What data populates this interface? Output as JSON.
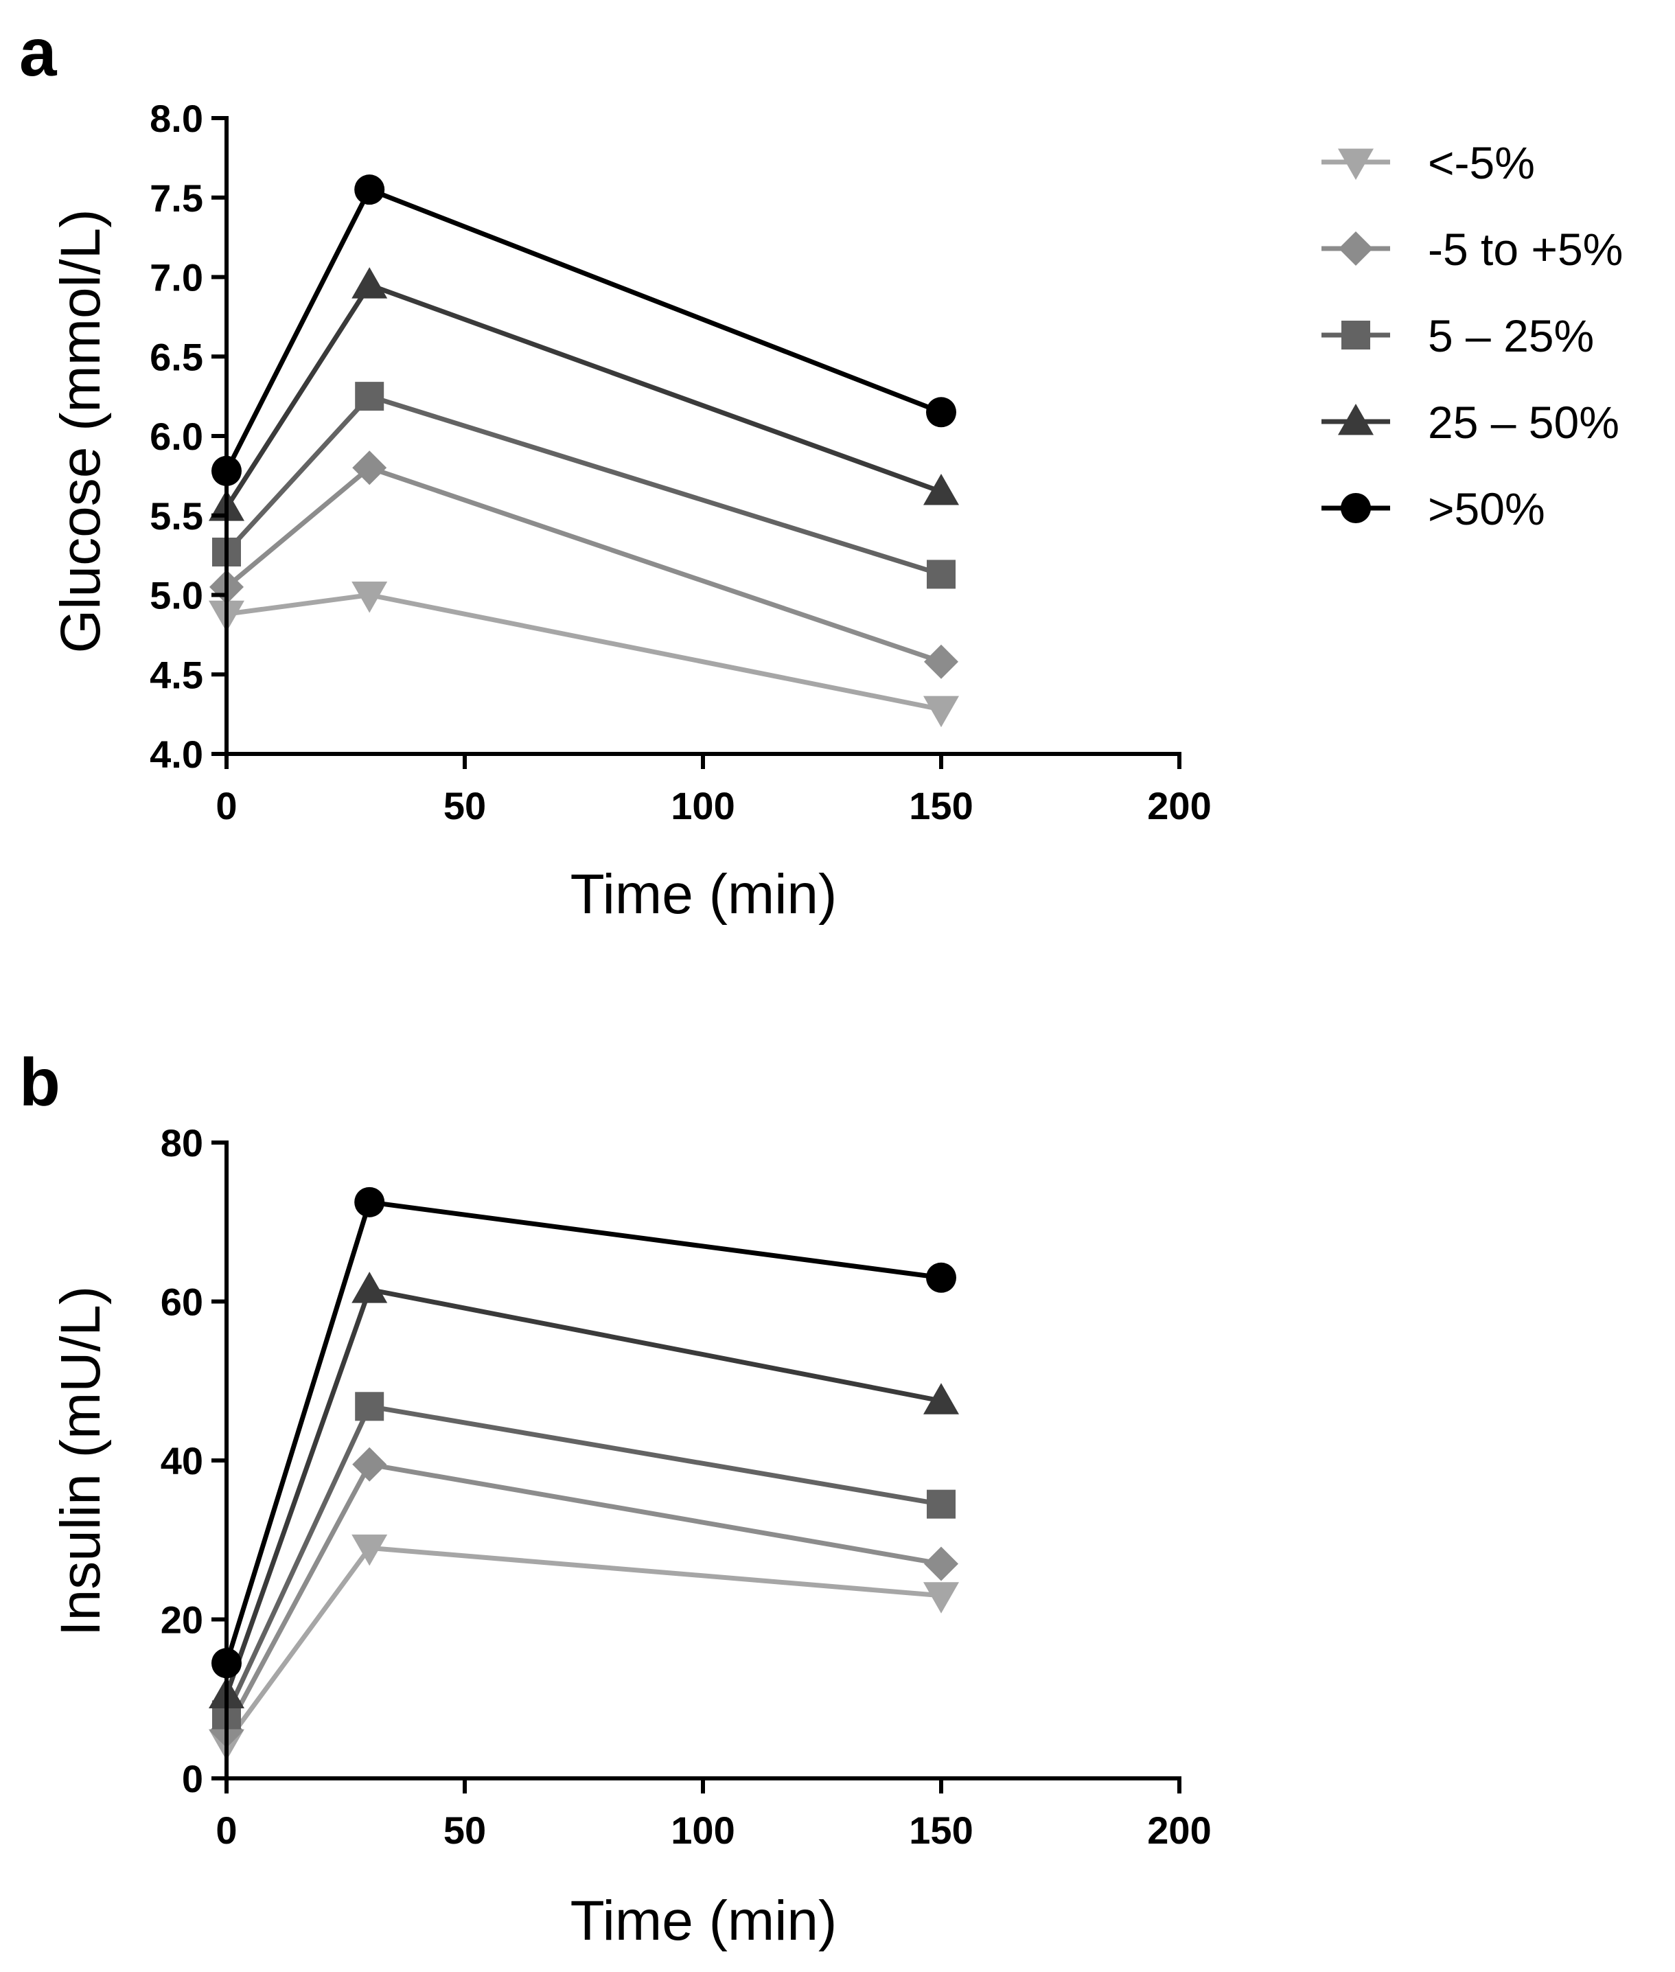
{
  "figure": {
    "panel_labels": [
      "a",
      "b"
    ]
  },
  "legend": {
    "entries": [
      {
        "name": "<-5%",
        "color": "#a6a6a6",
        "marker": "triangle-down"
      },
      {
        "name": "-5 to +5%",
        "color": "#8c8c8c",
        "marker": "diamond"
      },
      {
        "name": "5 – 25%",
        "color": "#636363",
        "marker": "square"
      },
      {
        "name": "25 – 50%",
        "color": "#3a3a3a",
        "marker": "triangle-up"
      },
      {
        "name": ">50%",
        "color": "#000000",
        "marker": "circle"
      }
    ]
  },
  "chart_data": [
    {
      "type": "line",
      "panel_label": "a",
      "xlabel": "Time (min)",
      "ylabel": "Glucose (mmol/L)",
      "xlim": [
        0,
        200
      ],
      "ylim": [
        4.0,
        8.0
      ],
      "xticks": [
        0,
        50,
        100,
        150,
        200
      ],
      "yticks": [
        4.0,
        4.5,
        5.0,
        5.5,
        6.0,
        6.5,
        7.0,
        7.5,
        8.0
      ],
      "ytick_decimals": 1,
      "grid": false,
      "legend_position": "right",
      "x": [
        0,
        30,
        150
      ],
      "series": [
        {
          "name": "<-5%",
          "values": [
            4.88,
            5.0,
            4.28
          ]
        },
        {
          "name": "-5 to +5%",
          "values": [
            5.05,
            5.8,
            4.58
          ]
        },
        {
          "name": "5 – 25%",
          "values": [
            5.27,
            6.25,
            5.13
          ]
        },
        {
          "name": "25 – 50%",
          "values": [
            5.55,
            6.95,
            5.65
          ]
        },
        {
          "name": ">50%",
          "values": [
            5.78,
            7.55,
            6.15
          ]
        }
      ]
    },
    {
      "type": "line",
      "panel_label": "b",
      "xlabel": "Time (min)",
      "ylabel": "Insulin (mU/L)",
      "xlim": [
        0,
        200
      ],
      "ylim": [
        0,
        80
      ],
      "xticks": [
        0,
        50,
        100,
        150,
        200
      ],
      "yticks": [
        0,
        20,
        40,
        60,
        80
      ],
      "ytick_decimals": 0,
      "grid": false,
      "x": [
        0,
        30,
        150
      ],
      "series": [
        {
          "name": "<-5%",
          "values": [
            4.5,
            29.0,
            23.0
          ]
        },
        {
          "name": "-5 to +5%",
          "values": [
            6.0,
            39.5,
            27.0
          ]
        },
        {
          "name": "5 – 25%",
          "values": [
            8.0,
            46.8,
            34.5
          ]
        },
        {
          "name": "25 – 50%",
          "values": [
            10.5,
            61.5,
            47.5
          ]
        },
        {
          "name": ">50%",
          "values": [
            14.5,
            72.5,
            63.0
          ]
        }
      ]
    }
  ]
}
